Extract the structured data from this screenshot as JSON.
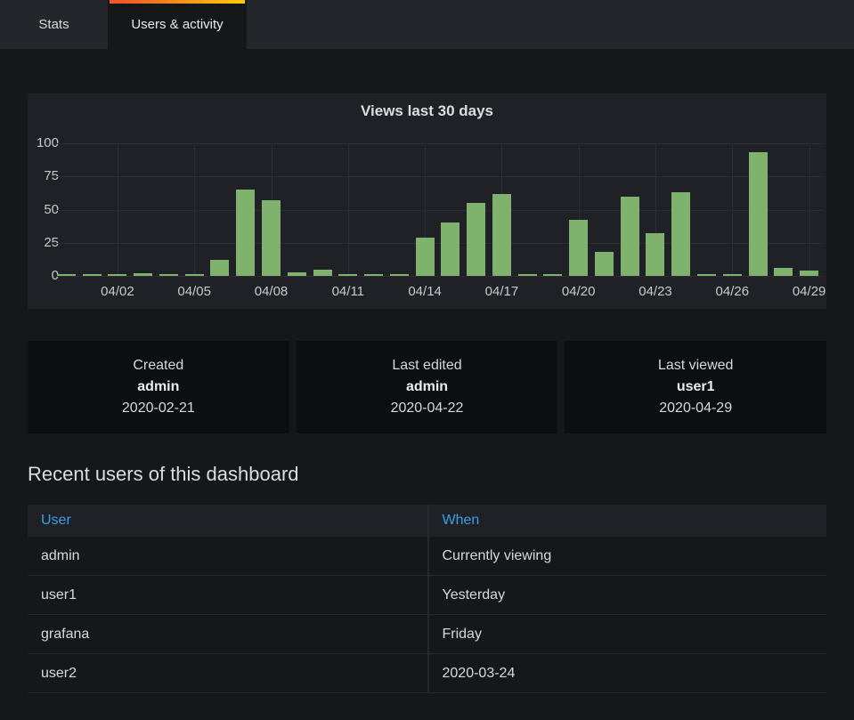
{
  "tabs": [
    {
      "label": "Stats",
      "active": false
    },
    {
      "label": "Users & activity",
      "active": true
    }
  ],
  "colors": {
    "tab_indicator_start": "#f05a28",
    "tab_indicator_end": "#fbca0a",
    "bar_green": "#7eb26d",
    "link_blue": "#33a2e5"
  },
  "chart_data": {
    "type": "bar",
    "title": "Views last 30 days",
    "xlabel": "",
    "ylabel": "",
    "ylim": [
      0,
      100
    ],
    "y_ticks": [
      0,
      25,
      50,
      75,
      100
    ],
    "grid": true,
    "legend": "none",
    "bar_color": "#7eb26d",
    "x": [
      "03/31",
      "04/01",
      "04/02",
      "04/03",
      "04/04",
      "04/05",
      "04/06",
      "04/07",
      "04/08",
      "04/09",
      "04/10",
      "04/11",
      "04/12",
      "04/13",
      "04/14",
      "04/15",
      "04/16",
      "04/17",
      "04/18",
      "04/19",
      "04/20",
      "04/21",
      "04/22",
      "04/23",
      "04/24",
      "04/25",
      "04/26",
      "04/27",
      "04/28",
      "04/29"
    ],
    "values": [
      1,
      1,
      1,
      2,
      1,
      1,
      12,
      65,
      57,
      3,
      5,
      1,
      1,
      1,
      29,
      40,
      55,
      62,
      1,
      1,
      42,
      18,
      60,
      32,
      63,
      1,
      1,
      93,
      6,
      4
    ],
    "x_tick_indices": [
      2,
      5,
      8,
      11,
      14,
      17,
      20,
      23,
      26,
      29
    ],
    "x_tick_labels": [
      "04/02",
      "04/05",
      "04/08",
      "04/11",
      "04/14",
      "04/17",
      "04/20",
      "04/23",
      "04/26",
      "04/29"
    ]
  },
  "stats": [
    {
      "title": "Created",
      "name": "admin",
      "date": "2020-02-21"
    },
    {
      "title": "Last edited",
      "name": "admin",
      "date": "2020-04-22"
    },
    {
      "title": "Last viewed",
      "name": "user1",
      "date": "2020-04-29"
    }
  ],
  "recent_users": {
    "heading": "Recent users of this dashboard",
    "columns": [
      "User",
      "When"
    ],
    "rows": [
      [
        "admin",
        "Currently viewing"
      ],
      [
        "user1",
        "Yesterday"
      ],
      [
        "grafana",
        "Friday"
      ],
      [
        "user2",
        "2020-03-24"
      ]
    ]
  }
}
